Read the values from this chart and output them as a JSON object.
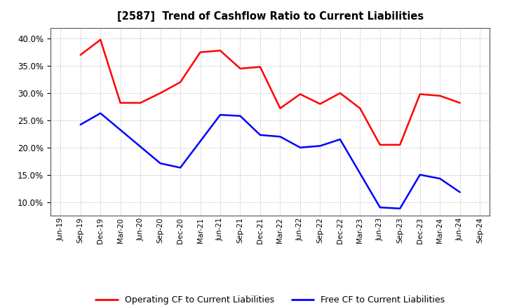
{
  "title": "[2587]  Trend of Cashflow Ratio to Current Liabilities",
  "x_labels": [
    "Jun-19",
    "Sep-19",
    "Dec-19",
    "Mar-20",
    "Jun-20",
    "Sep-20",
    "Dec-20",
    "Mar-21",
    "Jun-21",
    "Sep-21",
    "Dec-21",
    "Mar-22",
    "Jun-22",
    "Sep-22",
    "Dec-22",
    "Mar-23",
    "Jun-23",
    "Sep-23",
    "Dec-23",
    "Mar-24",
    "Jun-24",
    "Sep-24"
  ],
  "op_x": [
    1,
    2,
    3,
    4,
    5,
    6,
    7,
    8,
    9,
    10,
    11,
    12,
    13,
    14,
    15,
    16,
    17,
    18,
    19,
    20
  ],
  "op_y": [
    37.0,
    39.8,
    28.2,
    28.2,
    30.0,
    32.0,
    37.5,
    37.8,
    34.5,
    34.8,
    27.2,
    29.8,
    28.0,
    30.0,
    27.2,
    20.5,
    20.5,
    29.8,
    29.5,
    28.2
  ],
  "free_x": [
    1,
    2,
    5,
    6,
    8,
    9,
    10,
    11,
    12,
    13,
    14,
    16,
    17,
    18,
    19,
    20
  ],
  "free_y": [
    24.2,
    26.3,
    17.1,
    16.3,
    26.0,
    25.8,
    22.3,
    22.0,
    20.0,
    20.3,
    21.5,
    9.0,
    8.8,
    15.0,
    14.3,
    11.8
  ],
  "ylim": [
    7.5,
    42.0
  ],
  "yticks": [
    10.0,
    15.0,
    20.0,
    25.0,
    30.0,
    35.0,
    40.0
  ],
  "operating_color": "#ff0000",
  "free_color": "#0000ff",
  "bg_color": "#ffffff",
  "plot_bg": "#ffffff",
  "grid_color": "#b0b0b0",
  "legend_op": "Operating CF to Current Liabilities",
  "legend_free": "Free CF to Current Liabilities"
}
